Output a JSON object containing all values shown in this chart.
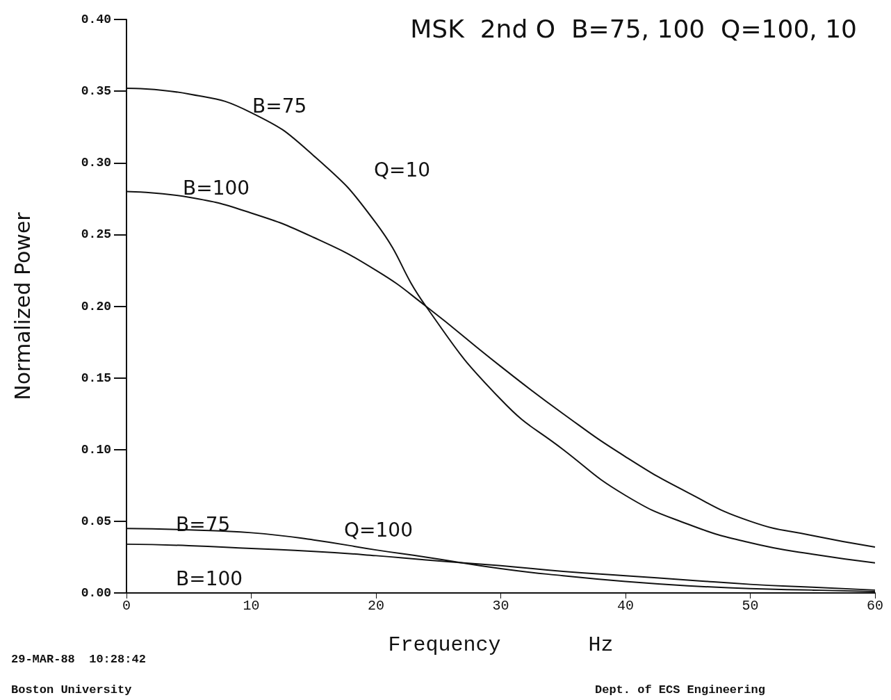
{
  "chart_data": {
    "type": "line",
    "title": "MSK  2nd O  B=75, 100  Q=100, 10",
    "xlabel": "Frequency       Hz",
    "ylabel": "Normalized Power",
    "xlim": [
      0,
      60
    ],
    "xticks": [
      0,
      10,
      20,
      30,
      40,
      50,
      60
    ],
    "ylim": [
      0,
      0.4
    ],
    "yticks": [
      {
        "value": 0,
        "label": "0.00"
      },
      {
        "value": 0.05,
        "label": "0.05"
      },
      {
        "value": 0.1,
        "label": "0.10"
      },
      {
        "value": 0.15,
        "label": "0.15"
      },
      {
        "value": 0.2,
        "label": "0.20"
      },
      {
        "value": 0.25,
        "label": "0.25"
      },
      {
        "value": 0.3,
        "label": "0.30"
      },
      {
        "value": 0.35,
        "label": "0.35"
      },
      {
        "value": 0.4,
        "label": "0.40"
      }
    ],
    "x": [
      0,
      5,
      10,
      15,
      20,
      24,
      30,
      35,
      40,
      45,
      50,
      55,
      60
    ],
    "series": [
      {
        "color": "#111111",
        "values": [
          0.352,
          0.348,
          0.335,
          0.305,
          0.258,
          0.2,
          0.135,
          0.1,
          0.068,
          0.048,
          0.035,
          0.027,
          0.021
        ]
      },
      {
        "color": "#111111",
        "values": [
          0.28,
          0.276,
          0.265,
          0.248,
          0.225,
          0.2,
          0.158,
          0.125,
          0.095,
          0.07,
          0.05,
          0.04,
          0.032
        ]
      },
      {
        "color": "#111111",
        "values": [
          0.045,
          0.044,
          0.042,
          0.037,
          0.03,
          0.025,
          0.017,
          0.012,
          0.008,
          0.005,
          0.003,
          0.002,
          0.001
        ]
      },
      {
        "color": "#111111",
        "values": [
          0.034,
          0.033,
          0.031,
          0.029,
          0.026,
          0.023,
          0.019,
          0.015,
          0.012,
          0.009,
          0.006,
          0.004,
          0.002
        ]
      }
    ],
    "grid": false,
    "marker": "none",
    "line_style": "solid",
    "annotations": [
      "B=75",
      "Q=10",
      "B=100",
      "B=75",
      "Q=100",
      "B=100",
      "29-MAR-88  10:28:42",
      "Boston University",
      "Dept. of ECS Engineering"
    ]
  }
}
